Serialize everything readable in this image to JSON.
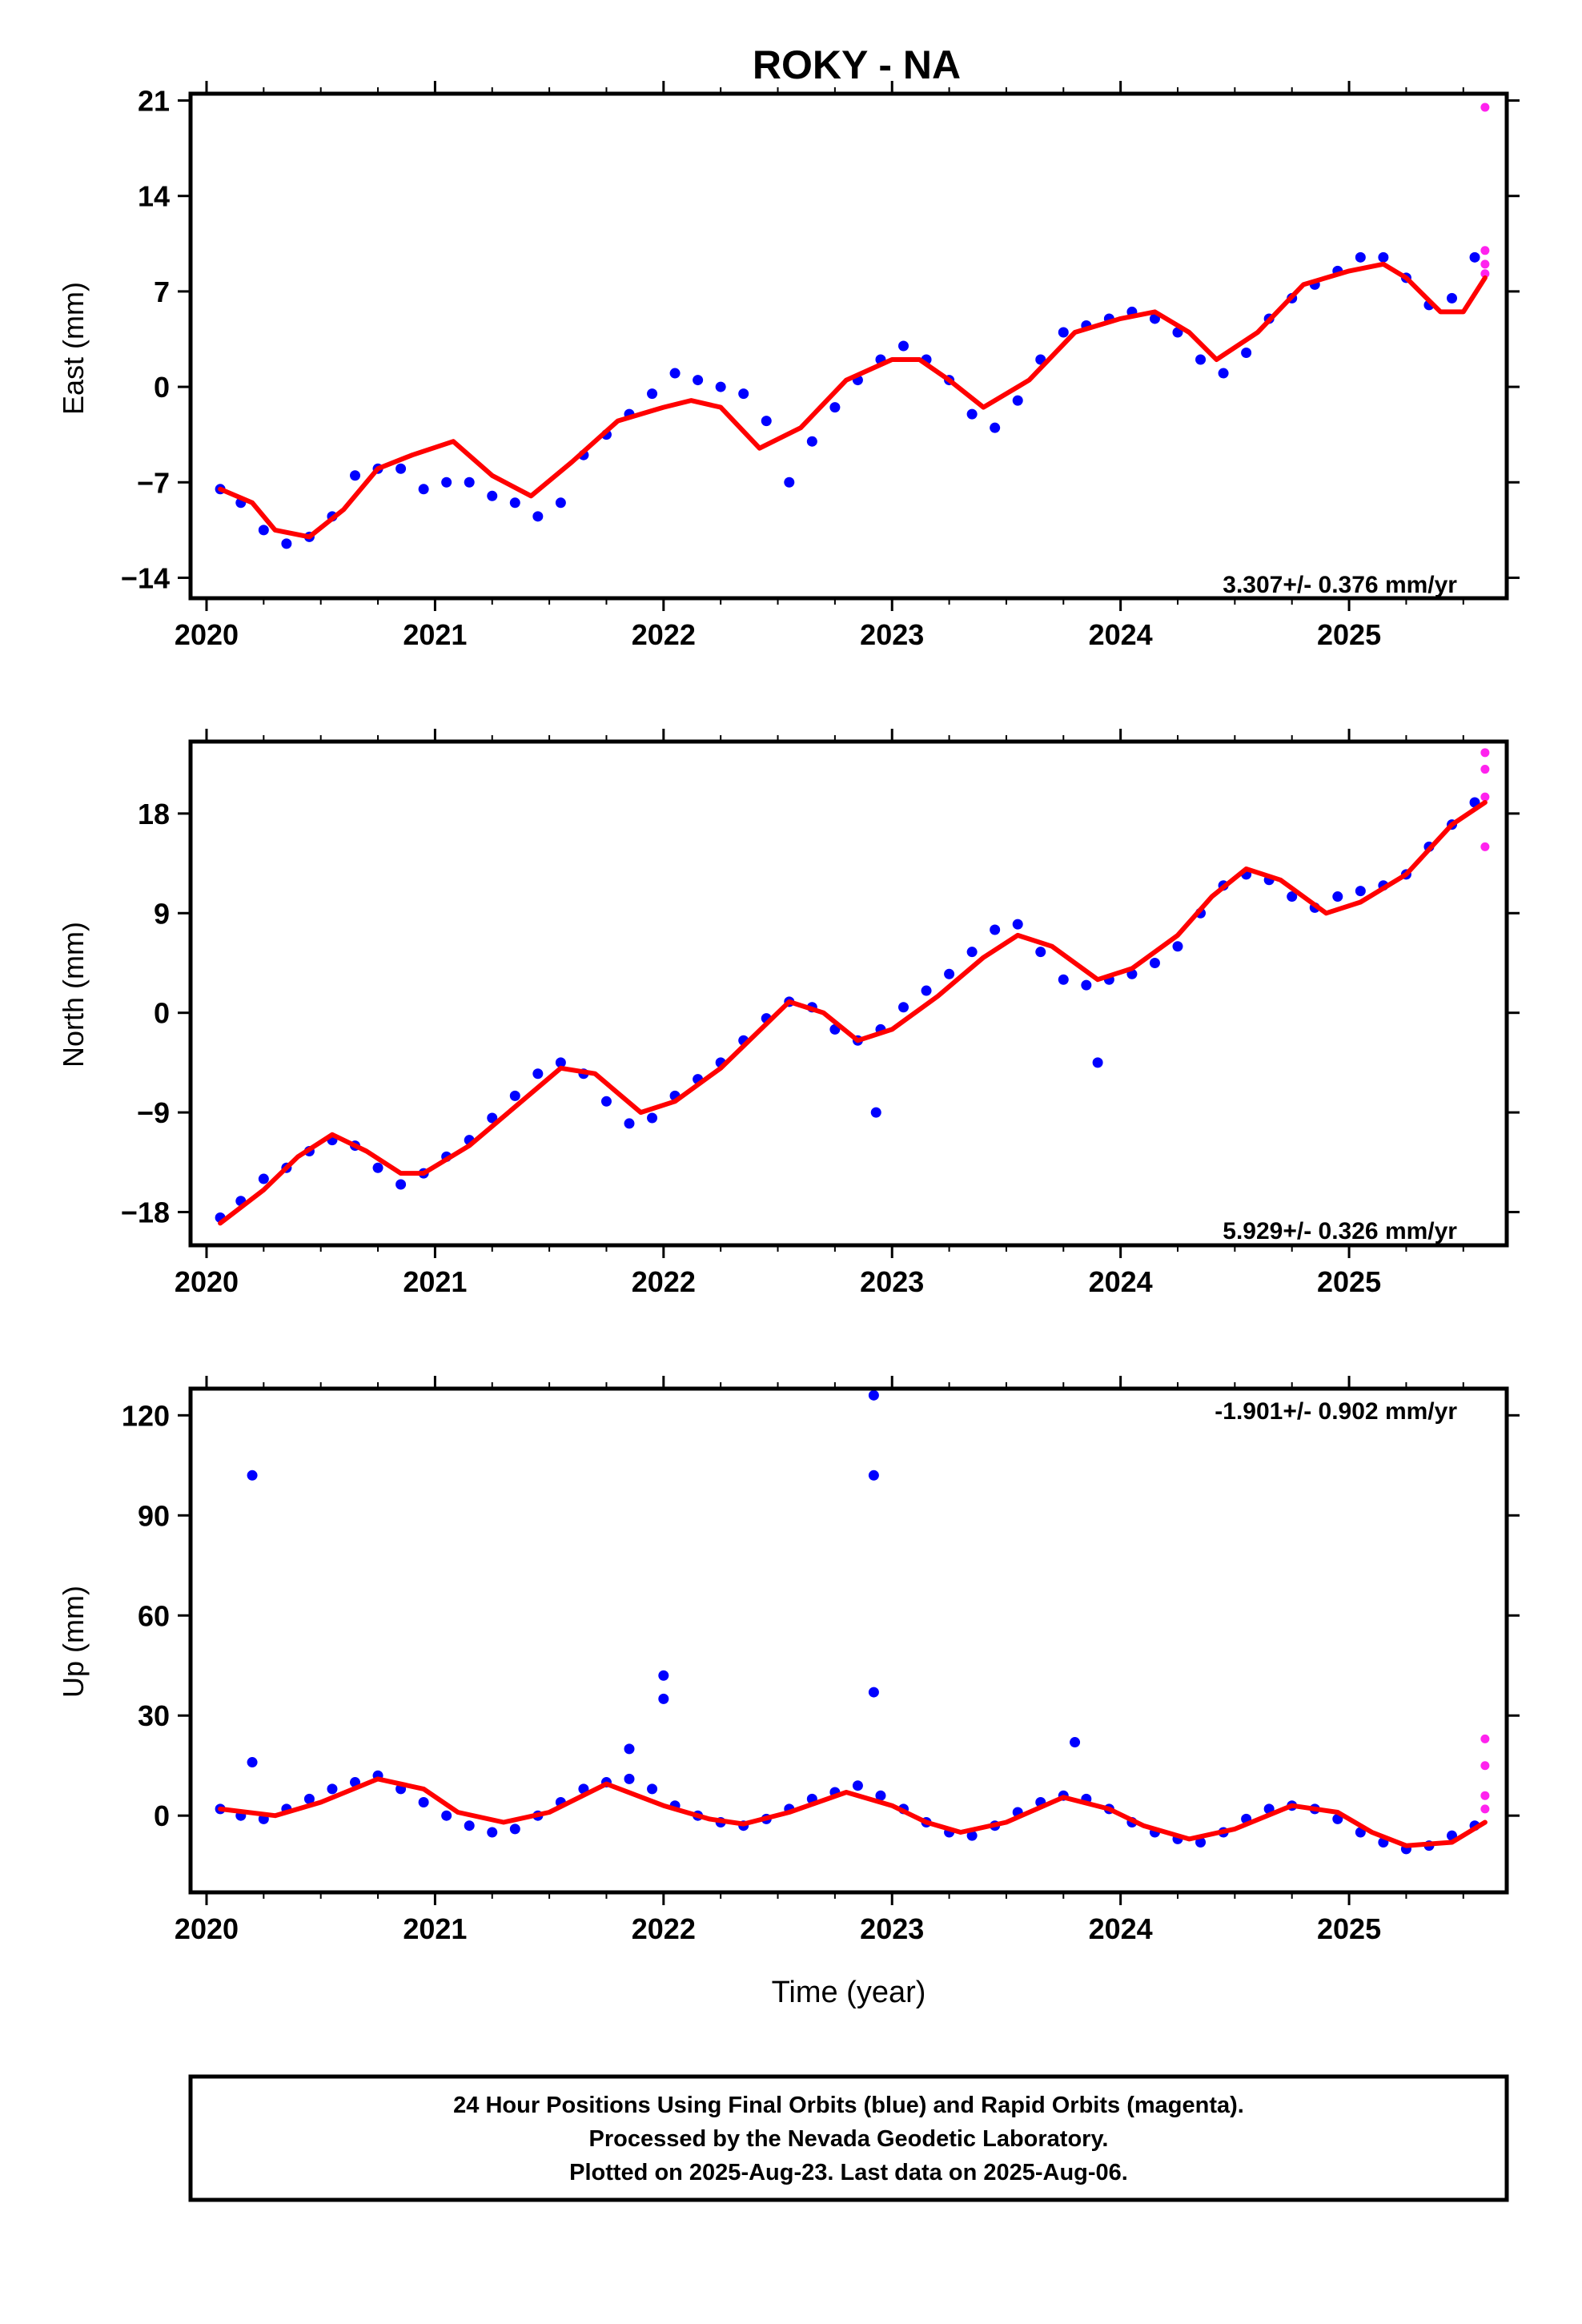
{
  "chart_data": [
    {
      "type": "scatter",
      "title": "ROKY - NA",
      "ylabel": "East (mm)",
      "xlabel": "",
      "x_ticks": [
        2020,
        2021,
        2022,
        2023,
        2024,
        2025
      ],
      "y_ticks": [
        21,
        14,
        7,
        0,
        -7,
        -14
      ],
      "y_tick_labels": [
        "21",
        "14",
        "7",
        "0",
        "−7",
        "−14"
      ],
      "xlim": [
        2019.93,
        2025.69
      ],
      "ylim": [
        -15.5,
        21.5
      ],
      "rate_label": "3.307+/- 0.376 mm/yr",
      "rate_position": "bottom-right",
      "grid": false,
      "series": [
        {
          "role": "final-orbits",
          "color": "#0000ff",
          "x": [
            2020.06,
            2020.15,
            2020.25,
            2020.35,
            2020.45,
            2020.55,
            2020.65,
            2020.75,
            2020.85,
            2020.95,
            2021.05,
            2021.15,
            2021.25,
            2021.35,
            2021.45,
            2021.55,
            2021.65,
            2021.75,
            2021.85,
            2021.95,
            2022.05,
            2022.15,
            2022.25,
            2022.35,
            2022.45,
            2022.55,
            2022.65,
            2022.75,
            2022.85,
            2022.95,
            2023.05,
            2023.15,
            2023.25,
            2023.35,
            2023.45,
            2023.55,
            2023.65,
            2023.75,
            2023.85,
            2023.95,
            2024.05,
            2024.15,
            2024.25,
            2024.35,
            2024.45,
            2024.55,
            2024.65,
            2024.75,
            2024.85,
            2024.95,
            2025.05,
            2025.15,
            2025.25,
            2025.35,
            2025.45,
            2025.55
          ],
          "y": [
            -7.5,
            -8.5,
            -10.5,
            -11.5,
            -11.0,
            -9.5,
            -6.5,
            -6.0,
            -6.0,
            -7.5,
            -7.0,
            -7.0,
            -8.0,
            -8.5,
            -9.5,
            -8.5,
            -5.0,
            -3.5,
            -2.0,
            -0.5,
            1.0,
            0.5,
            0.0,
            -0.5,
            -2.5,
            -7.0,
            -4.0,
            -1.5,
            0.5,
            2.0,
            3.0,
            2.0,
            0.5,
            -2.0,
            -3.0,
            -1.0,
            2.0,
            4.0,
            4.5,
            5.0,
            5.5,
            5.0,
            4.0,
            2.0,
            1.0,
            2.5,
            5.0,
            6.5,
            7.5,
            8.5,
            9.5,
            9.5,
            8.0,
            6.0,
            6.5,
            9.5
          ]
        },
        {
          "role": "rapid-orbits",
          "color": "#ff22ee",
          "x": [
            2025.595,
            2025.595,
            2025.595,
            2025.595
          ],
          "y": [
            20.5,
            10.0,
            9.0,
            8.3
          ]
        },
        {
          "role": "model-fit",
          "color": "#ff0000",
          "x": [
            2020.06,
            2020.2,
            2020.3,
            2020.45,
            2020.6,
            2020.75,
            2020.9,
            2021.08,
            2021.25,
            2021.42,
            2021.6,
            2021.8,
            2022.0,
            2022.12,
            2022.25,
            2022.42,
            2022.6,
            2022.8,
            2023.0,
            2023.12,
            2023.25,
            2023.4,
            2023.6,
            2023.8,
            2024.0,
            2024.15,
            2024.3,
            2024.42,
            2024.6,
            2024.8,
            2025.0,
            2025.15,
            2025.25,
            2025.4,
            2025.5,
            2025.595
          ],
          "y": [
            -7.5,
            -8.5,
            -10.5,
            -11.0,
            -9.0,
            -6.0,
            -5.0,
            -4.0,
            -6.5,
            -8.0,
            -5.5,
            -2.5,
            -1.5,
            -1.0,
            -1.5,
            -4.5,
            -3.0,
            0.5,
            2.0,
            2.0,
            0.5,
            -1.5,
            0.5,
            4.0,
            5.0,
            5.5,
            4.0,
            2.0,
            4.0,
            7.5,
            8.5,
            9.0,
            8.0,
            5.5,
            5.5,
            8.0
          ]
        }
      ]
    },
    {
      "type": "scatter",
      "ylabel": "North (mm)",
      "xlabel": "",
      "x_ticks": [
        2020,
        2021,
        2022,
        2023,
        2024,
        2025
      ],
      "y_ticks": [
        18,
        9,
        0,
        -9,
        -18
      ],
      "y_tick_labels": [
        "18",
        "9",
        "0",
        "−9",
        "−18"
      ],
      "xlim": [
        2019.93,
        2025.69
      ],
      "ylim": [
        -21.0,
        24.5
      ],
      "rate_label": "5.929+/- 0.326 mm/yr",
      "rate_position": "bottom-right",
      "grid": false,
      "series": [
        {
          "role": "final-orbits",
          "color": "#0000ff",
          "x": [
            2020.06,
            2020.15,
            2020.25,
            2020.35,
            2020.45,
            2020.55,
            2020.65,
            2020.75,
            2020.85,
            2020.95,
            2021.05,
            2021.15,
            2021.25,
            2021.35,
            2021.45,
            2021.55,
            2021.65,
            2021.75,
            2021.85,
            2021.95,
            2022.05,
            2022.15,
            2022.25,
            2022.35,
            2022.45,
            2022.55,
            2022.65,
            2022.75,
            2022.85,
            2022.95,
            2023.05,
            2023.15,
            2023.25,
            2023.35,
            2023.45,
            2023.55,
            2023.65,
            2023.75,
            2023.85,
            2023.95,
            2024.05,
            2024.15,
            2024.25,
            2024.35,
            2024.45,
            2024.55,
            2024.65,
            2024.75,
            2024.85,
            2024.95,
            2025.05,
            2025.15,
            2025.25,
            2025.35,
            2025.45,
            2025.55,
            2022.93,
            2023.9
          ],
          "y": [
            -18.5,
            -17.0,
            -15.0,
            -14.0,
            -12.5,
            -11.5,
            -12.0,
            -14.0,
            -15.5,
            -14.5,
            -13.0,
            -11.5,
            -9.5,
            -7.5,
            -5.5,
            -4.5,
            -5.5,
            -8.0,
            -10.0,
            -9.5,
            -7.5,
            -6.0,
            -4.5,
            -2.5,
            -0.5,
            1.0,
            0.5,
            -1.5,
            -2.5,
            -1.5,
            0.5,
            2.0,
            3.5,
            5.5,
            7.5,
            8.0,
            5.5,
            3.0,
            2.5,
            3.0,
            3.5,
            4.5,
            6.0,
            9.0,
            11.5,
            12.5,
            12.0,
            10.5,
            9.5,
            10.5,
            11.0,
            11.5,
            12.5,
            15.0,
            17.0,
            19.0,
            -9.0,
            -4.5
          ]
        },
        {
          "role": "rapid-orbits",
          "color": "#ff22ee",
          "x": [
            2025.595,
            2025.595,
            2025.595,
            2025.595
          ],
          "y": [
            23.5,
            22.0,
            19.5,
            15.0
          ]
        },
        {
          "role": "model-fit",
          "color": "#ff0000",
          "x": [
            2020.06,
            2020.25,
            2020.4,
            2020.55,
            2020.7,
            2020.85,
            2020.95,
            2021.15,
            2021.35,
            2021.55,
            2021.7,
            2021.9,
            2022.05,
            2022.25,
            2022.4,
            2022.55,
            2022.7,
            2022.85,
            2023.0,
            2023.2,
            2023.4,
            2023.55,
            2023.7,
            2023.9,
            2024.05,
            2024.25,
            2024.4,
            2024.55,
            2024.7,
            2024.9,
            2025.05,
            2025.25,
            2025.45,
            2025.595
          ],
          "y": [
            -19.0,
            -16.0,
            -13.0,
            -11.0,
            -12.5,
            -14.5,
            -14.5,
            -12.0,
            -8.5,
            -5.0,
            -5.5,
            -9.0,
            -8.0,
            -5.0,
            -2.0,
            1.0,
            0.0,
            -2.5,
            -1.5,
            1.5,
            5.0,
            7.0,
            6.0,
            3.0,
            4.0,
            7.0,
            10.5,
            13.0,
            12.0,
            9.0,
            10.0,
            12.5,
            17.0,
            19.0
          ]
        }
      ]
    },
    {
      "type": "scatter",
      "ylabel": "Up (mm)",
      "xlabel": "Time (year)",
      "x_ticks": [
        2020,
        2021,
        2022,
        2023,
        2024,
        2025
      ],
      "y_ticks": [
        120,
        90,
        60,
        30,
        0
      ],
      "y_tick_labels": [
        "120",
        "90",
        "60",
        "30",
        "0"
      ],
      "xlim": [
        2019.93,
        2025.69
      ],
      "ylim": [
        -23,
        128
      ],
      "rate_label": "-1.901+/- 0.902 mm/yr",
      "rate_position": "top-right",
      "grid": false,
      "series": [
        {
          "role": "final-orbits",
          "color": "#0000ff",
          "x": [
            2020.06,
            2020.15,
            2020.25,
            2020.35,
            2020.45,
            2020.55,
            2020.65,
            2020.75,
            2020.85,
            2020.95,
            2021.05,
            2021.15,
            2021.25,
            2021.35,
            2021.45,
            2021.55,
            2021.65,
            2021.75,
            2021.85,
            2021.95,
            2022.05,
            2022.15,
            2022.25,
            2022.35,
            2022.45,
            2022.55,
            2022.65,
            2022.75,
            2022.85,
            2022.95,
            2023.05,
            2023.15,
            2023.25,
            2023.35,
            2023.45,
            2023.55,
            2023.65,
            2023.75,
            2023.85,
            2023.95,
            2024.05,
            2024.15,
            2024.25,
            2024.35,
            2024.45,
            2024.55,
            2024.65,
            2024.75,
            2024.85,
            2024.95,
            2025.05,
            2025.15,
            2025.25,
            2025.35,
            2025.45,
            2025.55,
            2020.2,
            2020.2,
            2021.85,
            2022.0,
            2022.0,
            2022.92,
            2022.92,
            2022.92,
            2023.8
          ],
          "y": [
            2.0,
            0.0,
            -1.0,
            2.0,
            5.0,
            8.0,
            10.0,
            12.0,
            8.0,
            4.0,
            0.0,
            -3.0,
            -5.0,
            -4.0,
            0.0,
            4.0,
            8.0,
            10.0,
            11.0,
            8.0,
            3.0,
            0.0,
            -2.0,
            -3.0,
            -1.0,
            2.0,
            5.0,
            7.0,
            9.0,
            6.0,
            2.0,
            -2.0,
            -5.0,
            -6.0,
            -3.0,
            1.0,
            4.0,
            6.0,
            5.0,
            2.0,
            -2.0,
            -5.0,
            -7.0,
            -8.0,
            -5.0,
            -1.0,
            2.0,
            3.0,
            2.0,
            -1.0,
            -5.0,
            -8.0,
            -10.0,
            -9.0,
            -6.0,
            -3.0,
            102.0,
            16.0,
            20.0,
            42.0,
            35.0,
            126.0,
            102.0,
            37.0,
            22.0
          ]
        },
        {
          "role": "rapid-orbits",
          "color": "#ff22ee",
          "x": [
            2025.595,
            2025.595,
            2025.595,
            2025.595
          ],
          "y": [
            23.0,
            15.0,
            6.0,
            2.0
          ]
        },
        {
          "role": "model-fit",
          "color": "#ff0000",
          "x": [
            2020.06,
            2020.3,
            2020.5,
            2020.75,
            2020.95,
            2021.1,
            2021.3,
            2021.5,
            2021.75,
            2022.0,
            2022.2,
            2022.35,
            2022.55,
            2022.8,
            2023.0,
            2023.15,
            2023.3,
            2023.5,
            2023.75,
            2023.95,
            2024.1,
            2024.3,
            2024.5,
            2024.75,
            2024.95,
            2025.1,
            2025.25,
            2025.45,
            2025.595
          ],
          "y": [
            2.0,
            0.0,
            4.0,
            11.0,
            8.0,
            1.0,
            -2.0,
            1.0,
            9.5,
            3.0,
            -1.0,
            -2.5,
            1.0,
            7.0,
            3.0,
            -2.0,
            -5.0,
            -2.0,
            5.5,
            2.0,
            -3.0,
            -7.0,
            -4.0,
            3.0,
            1.0,
            -5.0,
            -9.0,
            -8.0,
            -2.0
          ]
        }
      ]
    }
  ],
  "footer": {
    "line1": "24 Hour Positions Using Final Orbits (blue) and Rapid Orbits (magenta).",
    "line2": "Processed by the Nevada Geodetic Laboratory.",
    "line3": "Plotted on 2025-Aug-23. Last data on 2025-Aug-06."
  }
}
